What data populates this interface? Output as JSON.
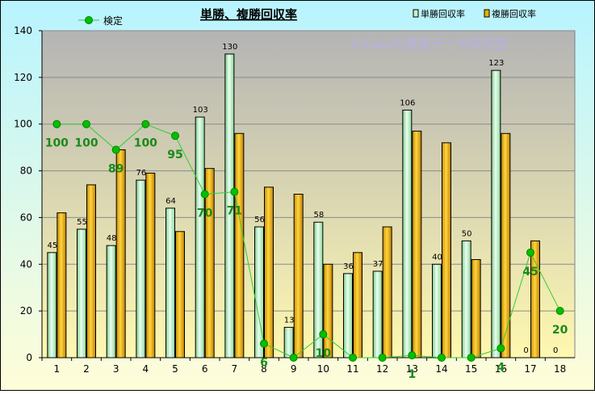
{
  "chart_data": {
    "type": "bar",
    "title": "単勝、複勝回収率",
    "watermark": "©Caniの競馬データ研究室",
    "categories": [
      "1",
      "2",
      "3",
      "4",
      "5",
      "6",
      "7",
      "8",
      "9",
      "10",
      "11",
      "12",
      "13",
      "14",
      "15",
      "16",
      "17",
      "18"
    ],
    "ylim": [
      0,
      140
    ],
    "yticks": [
      0,
      20,
      40,
      60,
      80,
      100,
      120,
      140
    ],
    "grid": true,
    "legend_placement": "top",
    "series": [
      {
        "name": "単勝回収率",
        "kind": "bar",
        "color": "#c8f0c8",
        "values": [
          45,
          55,
          48,
          76,
          64,
          103,
          130,
          56,
          13,
          58,
          36,
          37,
          106,
          40,
          50,
          123,
          0,
          0
        ],
        "labels": [
          "45",
          "55",
          "48",
          "76",
          "64",
          "103",
          "130",
          "56",
          "13",
          "58",
          "36",
          "37",
          "106",
          "40",
          "50",
          "123",
          "0",
          "0"
        ]
      },
      {
        "name": "複勝回収率",
        "kind": "bar",
        "color": "#e8b000",
        "values": [
          62,
          74,
          89,
          79,
          54,
          81,
          96,
          73,
          70,
          40,
          45,
          56,
          97,
          92,
          42,
          96,
          50,
          null
        ]
      },
      {
        "name": "検定",
        "kind": "line",
        "color": "#00b000",
        "values": [
          100,
          100,
          89,
          100,
          95,
          70,
          71,
          6,
          0,
          10,
          0,
          0,
          1,
          0,
          0,
          4,
          45,
          20
        ],
        "labels": [
          "100",
          "100",
          "89",
          "100",
          "95",
          "70",
          "71",
          "6",
          "",
          "10",
          "",
          "",
          "1",
          "",
          "",
          "4",
          "45",
          "20"
        ]
      }
    ]
  }
}
